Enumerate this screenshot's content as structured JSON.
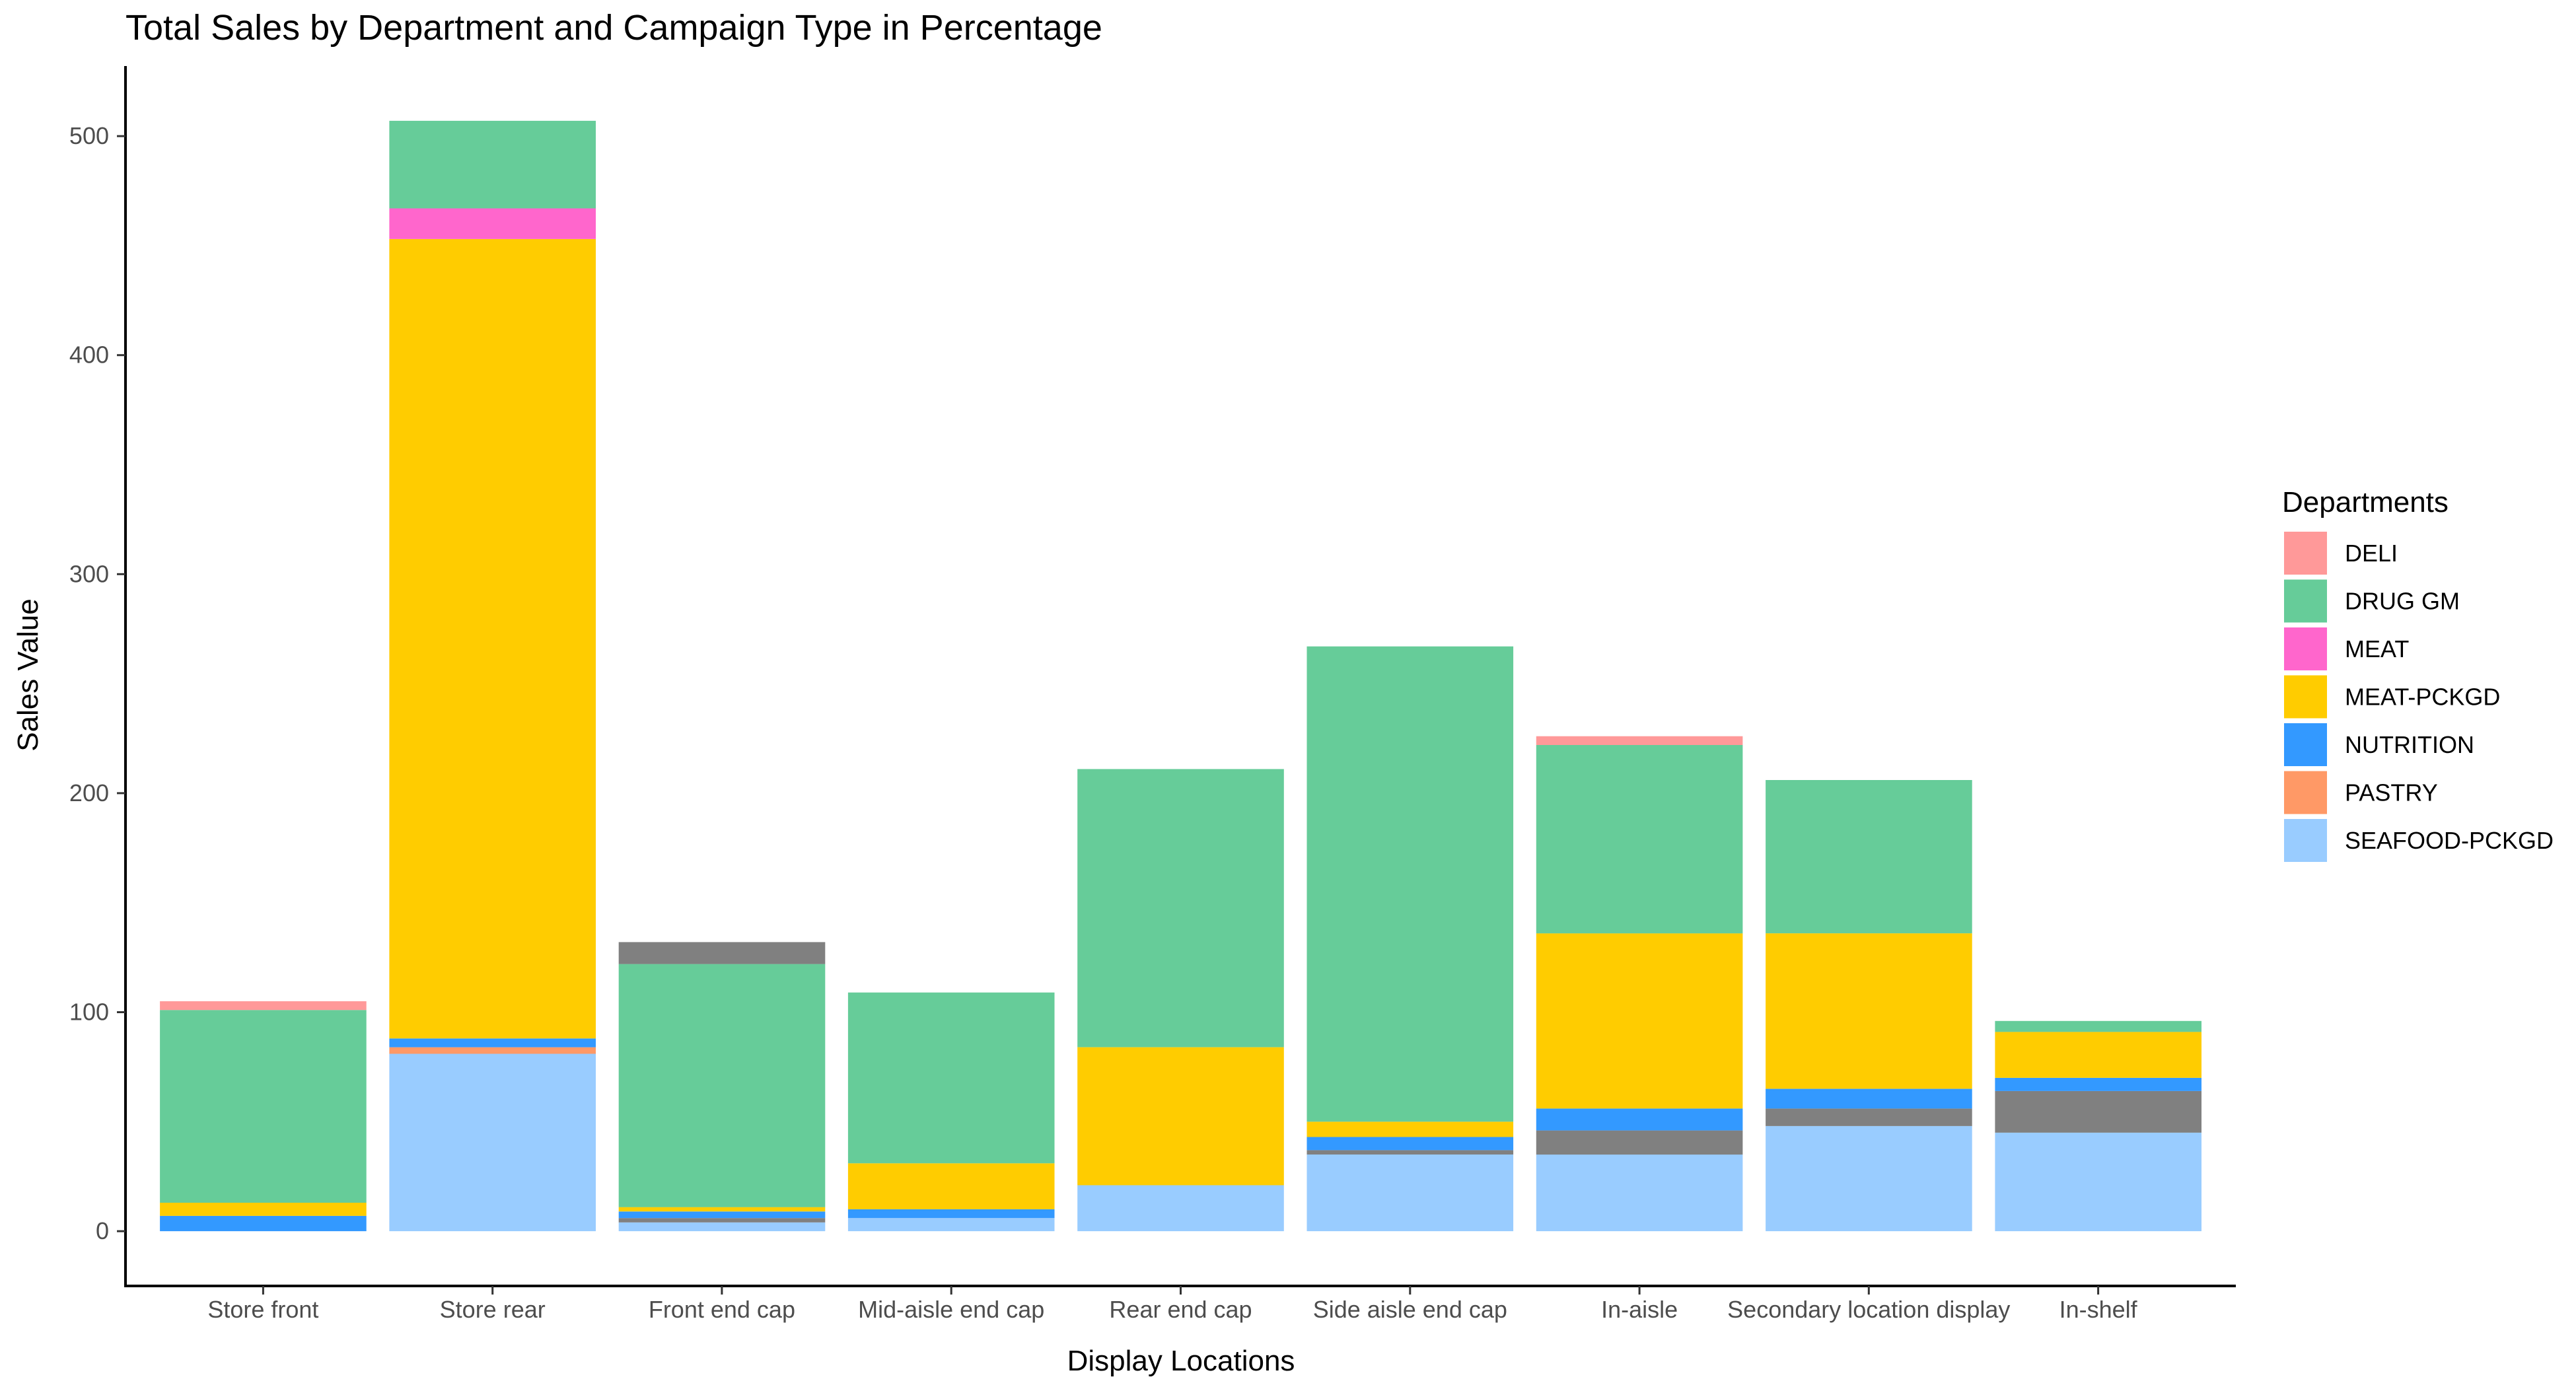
{
  "chart_data": {
    "type": "bar",
    "stacked": true,
    "title": "Total Sales by Department and Campaign Type in Percentage",
    "xlabel": "Display Locations",
    "ylabel": "Sales Value",
    "ylim": [
      -25,
      532
    ],
    "yticks": [
      0,
      100,
      200,
      300,
      400,
      500
    ],
    "grid": false,
    "legend": {
      "title": "Departments",
      "position": "right"
    },
    "categories": [
      "Store front",
      "Store rear",
      "Front end cap",
      "Mid-aisle end cap",
      "Rear end cap",
      "Side aisle end cap",
      "In-aisle",
      "Secondary location display",
      "In-shelf"
    ],
    "series": [
      {
        "name": "SEAFOOD-PCKGD",
        "color": "#99CCFF",
        "in_legend": true,
        "values": [
          0,
          81,
          4,
          6,
          21,
          35,
          35,
          48,
          45
        ]
      },
      {
        "name": "",
        "color": "#808080",
        "in_legend": false,
        "values": [
          0,
          0,
          2,
          0,
          0,
          2,
          11,
          8,
          19
        ]
      },
      {
        "name": "PASTRY",
        "color": "#FF9966",
        "in_legend": true,
        "values": [
          0,
          3,
          0,
          0,
          0,
          0,
          0,
          0,
          0
        ]
      },
      {
        "name": "NUTRITION",
        "color": "#3399FF",
        "in_legend": true,
        "values": [
          7,
          4,
          3,
          4,
          0,
          6,
          10,
          9,
          6
        ]
      },
      {
        "name": "MEAT-PCKGD",
        "color": "#FFCC00",
        "in_legend": true,
        "values": [
          6,
          365,
          2,
          21,
          63,
          7,
          80,
          71,
          21
        ]
      },
      {
        "name": "MEAT",
        "color": "#FF66CC",
        "in_legend": true,
        "values": [
          0,
          14,
          0,
          0,
          0,
          0,
          0,
          0,
          0
        ]
      },
      {
        "name": "DRUG GM",
        "color": "#66CC99",
        "in_legend": true,
        "values": [
          88,
          40,
          111,
          78,
          127,
          217,
          86,
          70,
          5
        ]
      },
      {
        "name": "",
        "color": "#808080",
        "in_legend": false,
        "values": [
          0,
          0,
          10,
          0,
          0,
          0,
          0,
          0,
          0
        ]
      },
      {
        "name": "DELI",
        "color": "#FF9999",
        "in_legend": true,
        "values": [
          4,
          0,
          0,
          0,
          0,
          0,
          4,
          0,
          0
        ]
      }
    ],
    "legend_order": [
      "DELI",
      "DRUG GM",
      "MEAT",
      "MEAT-PCKGD",
      "NUTRITION",
      "PASTRY",
      "SEAFOOD-PCKGD"
    ]
  }
}
